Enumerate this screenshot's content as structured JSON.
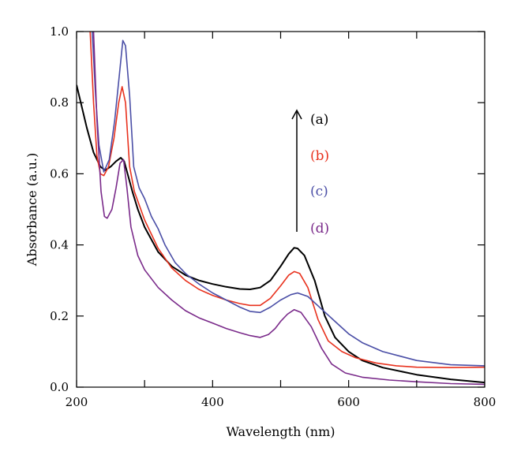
{
  "chart_data": {
    "type": "line",
    "title": "",
    "xlabel": "Wavelength (nm)",
    "ylabel": "Absorbance (a.u.)",
    "xlim": [
      200,
      800
    ],
    "ylim": [
      0.0,
      1.0
    ],
    "x_ticks": [
      200,
      400,
      600,
      800
    ],
    "x_minor_ticks": [
      300,
      500,
      700
    ],
    "y_ticks": [
      0.0,
      0.2,
      0.4,
      0.6,
      0.8,
      1.0
    ],
    "x_tick_labels": [
      "200",
      "400",
      "600",
      "800"
    ],
    "y_tick_labels": [
      "0.0",
      "0.2",
      "0.4",
      "0.6",
      "0.8",
      "1.0"
    ],
    "grid": false,
    "legend_placement": "top-center, vertical, with upward arrow",
    "arrow_direction": "up",
    "series": [
      {
        "name": "(a)",
        "color": "#000000",
        "points": [
          [
            200,
            0.85
          ],
          [
            215,
            0.73
          ],
          [
            225,
            0.66
          ],
          [
            235,
            0.62
          ],
          [
            242,
            0.61
          ],
          [
            250,
            0.62
          ],
          [
            258,
            0.635
          ],
          [
            265,
            0.645
          ],
          [
            270,
            0.635
          ],
          [
            275,
            0.6
          ],
          [
            282,
            0.55
          ],
          [
            290,
            0.5
          ],
          [
            300,
            0.45
          ],
          [
            320,
            0.38
          ],
          [
            340,
            0.34
          ],
          [
            360,
            0.315
          ],
          [
            380,
            0.3
          ],
          [
            400,
            0.29
          ],
          [
            420,
            0.282
          ],
          [
            440,
            0.276
          ],
          [
            455,
            0.275
          ],
          [
            470,
            0.28
          ],
          [
            485,
            0.3
          ],
          [
            500,
            0.34
          ],
          [
            512,
            0.375
          ],
          [
            520,
            0.392
          ],
          [
            525,
            0.39
          ],
          [
            535,
            0.37
          ],
          [
            550,
            0.3
          ],
          [
            565,
            0.2
          ],
          [
            580,
            0.14
          ],
          [
            600,
            0.1
          ],
          [
            620,
            0.075
          ],
          [
            650,
            0.055
          ],
          [
            700,
            0.035
          ],
          [
            750,
            0.022
          ],
          [
            800,
            0.013
          ]
        ]
      },
      {
        "name": "(b)",
        "color": "#e8321e",
        "points": [
          [
            220,
            1.0
          ],
          [
            225,
            0.8
          ],
          [
            230,
            0.65
          ],
          [
            235,
            0.6
          ],
          [
            240,
            0.595
          ],
          [
            247,
            0.62
          ],
          [
            255,
            0.7
          ],
          [
            262,
            0.8
          ],
          [
            267,
            0.845
          ],
          [
            272,
            0.8
          ],
          [
            278,
            0.62
          ],
          [
            285,
            0.55
          ],
          [
            300,
            0.47
          ],
          [
            320,
            0.39
          ],
          [
            340,
            0.335
          ],
          [
            360,
            0.3
          ],
          [
            380,
            0.275
          ],
          [
            400,
            0.258
          ],
          [
            420,
            0.245
          ],
          [
            440,
            0.235
          ],
          [
            455,
            0.23
          ],
          [
            470,
            0.23
          ],
          [
            485,
            0.25
          ],
          [
            500,
            0.285
          ],
          [
            512,
            0.315
          ],
          [
            520,
            0.325
          ],
          [
            528,
            0.32
          ],
          [
            540,
            0.28
          ],
          [
            555,
            0.19
          ],
          [
            570,
            0.13
          ],
          [
            590,
            0.1
          ],
          [
            610,
            0.083
          ],
          [
            640,
            0.068
          ],
          [
            670,
            0.06
          ],
          [
            700,
            0.056
          ],
          [
            750,
            0.055
          ],
          [
            800,
            0.056
          ]
        ]
      },
      {
        "name": "(c)",
        "color": "#4a4ea6",
        "points": [
          [
            223,
            1.0
          ],
          [
            228,
            0.82
          ],
          [
            233,
            0.68
          ],
          [
            240,
            0.605
          ],
          [
            248,
            0.64
          ],
          [
            256,
            0.75
          ],
          [
            263,
            0.88
          ],
          [
            268,
            0.975
          ],
          [
            272,
            0.96
          ],
          [
            278,
            0.82
          ],
          [
            284,
            0.62
          ],
          [
            292,
            0.56
          ],
          [
            300,
            0.53
          ],
          [
            310,
            0.48
          ],
          [
            320,
            0.445
          ],
          [
            330,
            0.4
          ],
          [
            345,
            0.35
          ],
          [
            360,
            0.32
          ],
          [
            380,
            0.29
          ],
          [
            400,
            0.265
          ],
          [
            420,
            0.245
          ],
          [
            440,
            0.225
          ],
          [
            455,
            0.213
          ],
          [
            470,
            0.21
          ],
          [
            485,
            0.225
          ],
          [
            500,
            0.245
          ],
          [
            515,
            0.26
          ],
          [
            525,
            0.265
          ],
          [
            540,
            0.255
          ],
          [
            560,
            0.22
          ],
          [
            580,
            0.185
          ],
          [
            600,
            0.15
          ],
          [
            620,
            0.125
          ],
          [
            650,
            0.1
          ],
          [
            700,
            0.075
          ],
          [
            750,
            0.063
          ],
          [
            800,
            0.06
          ]
        ]
      },
      {
        "name": "(d)",
        "color": "#7a2a8a",
        "points": [
          [
            225,
            1.0
          ],
          [
            230,
            0.75
          ],
          [
            236,
            0.55
          ],
          [
            241,
            0.48
          ],
          [
            245,
            0.475
          ],
          [
            252,
            0.5
          ],
          [
            258,
            0.56
          ],
          [
            264,
            0.63
          ],
          [
            269,
            0.64
          ],
          [
            274,
            0.56
          ],
          [
            280,
            0.45
          ],
          [
            290,
            0.37
          ],
          [
            300,
            0.33
          ],
          [
            320,
            0.28
          ],
          [
            340,
            0.245
          ],
          [
            360,
            0.215
          ],
          [
            380,
            0.195
          ],
          [
            400,
            0.18
          ],
          [
            420,
            0.165
          ],
          [
            440,
            0.153
          ],
          [
            455,
            0.145
          ],
          [
            470,
            0.14
          ],
          [
            482,
            0.148
          ],
          [
            492,
            0.165
          ],
          [
            500,
            0.185
          ],
          [
            510,
            0.205
          ],
          [
            520,
            0.218
          ],
          [
            530,
            0.21
          ],
          [
            545,
            0.17
          ],
          [
            560,
            0.11
          ],
          [
            575,
            0.065
          ],
          [
            595,
            0.04
          ],
          [
            620,
            0.028
          ],
          [
            660,
            0.02
          ],
          [
            700,
            0.015
          ],
          [
            750,
            0.01
          ],
          [
            800,
            0.008
          ]
        ]
      }
    ]
  }
}
